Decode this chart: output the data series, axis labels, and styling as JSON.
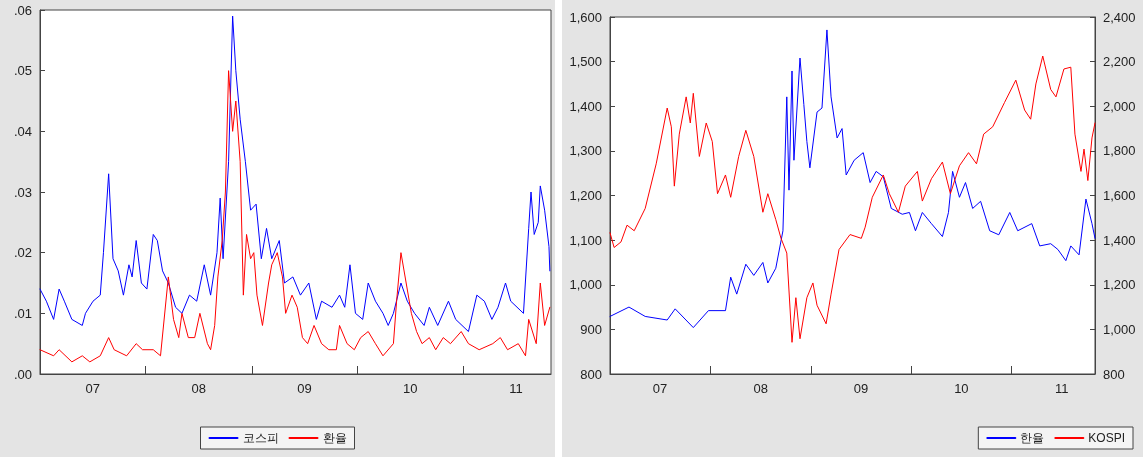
{
  "chart_data": [
    {
      "type": "line",
      "xlim": [
        "2007-01-01",
        "2011-10-31"
      ],
      "xticks": [
        {
          "value": "2008-01-01",
          "label": null
        },
        {
          "value": "2009-01-01",
          "label": null
        },
        {
          "value": "2010-01-01",
          "label": null
        },
        {
          "value": "2011-01-01",
          "label": null
        },
        {
          "value": "2007-07-02",
          "label": "07"
        },
        {
          "value": "2008-07-02",
          "label": "08"
        },
        {
          "value": "2009-07-02",
          "label": "09"
        },
        {
          "value": "2010-07-02",
          "label": "10"
        },
        {
          "value": "2011-07-02",
          "label": "11"
        }
      ],
      "ylim": [
        0,
        0.06
      ],
      "yticks": [
        {
          "value": 0,
          "label": ".00"
        },
        {
          "value": 0.01,
          "label": ".01"
        },
        {
          "value": 0.02,
          "label": ".02"
        },
        {
          "value": 0.03,
          "label": ".03"
        },
        {
          "value": 0.04,
          "label": ".04"
        },
        {
          "value": 0.05,
          "label": ".05"
        },
        {
          "value": 0.06,
          "label": ".06"
        }
      ],
      "grid": false,
      "legend": "bottom",
      "marker": "none",
      "line_style": "solid",
      "series": [
        {
          "name": "코스피",
          "color": "#0000ff",
          "x": [
            "2007-01-01",
            "2007-01-23",
            "2007-02-17",
            "2007-03-08",
            "2007-03-26",
            "2007-04-21",
            "2007-05-27",
            "2007-06-07",
            "2007-07-03",
            "2007-07-28",
            "2007-08-08",
            "2007-08-26",
            "2007-09-10",
            "2007-09-28",
            "2007-10-16",
            "2007-11-04",
            "2007-11-15",
            "2007-11-29",
            "2007-12-17",
            "2008-01-05",
            "2008-01-27",
            "2008-02-10",
            "2008-02-28",
            "2008-03-19",
            "2008-04-13",
            "2008-05-05",
            "2008-05-31",
            "2008-06-25",
            "2008-07-21",
            "2008-08-12",
            "2008-09-03",
            "2008-09-14",
            "2008-09-24",
            "2008-10-13",
            "2008-10-27",
            "2008-11-07",
            "2008-11-22",
            "2008-12-10",
            "2008-12-28",
            "2009-01-16",
            "2009-02-03",
            "2009-02-21",
            "2009-03-11",
            "2009-04-06",
            "2009-04-24",
            "2009-05-23",
            "2009-06-18",
            "2009-07-17",
            "2009-08-12",
            "2009-08-30",
            "2009-10-05",
            "2009-10-31",
            "2009-11-18",
            "2009-12-06",
            "2009-12-25",
            "2010-01-19",
            "2010-02-07",
            "2010-03-04",
            "2010-03-30",
            "2010-04-17",
            "2010-05-05",
            "2010-05-31",
            "2010-06-22",
            "2010-07-17",
            "2010-08-19",
            "2010-09-06",
            "2010-10-05",
            "2010-11-11",
            "2010-12-06",
            "2011-01-19",
            "2011-02-17",
            "2011-03-15",
            "2011-04-10",
            "2011-05-01",
            "2011-05-27",
            "2011-06-14",
            "2011-07-28",
            "2011-08-15",
            "2011-08-23",
            "2011-09-03",
            "2011-09-17",
            "2011-09-24",
            "2011-10-09",
            "2011-10-24",
            "2011-10-27"
          ],
          "values": [
            0.014,
            0.012,
            0.009,
            0.014,
            0.012,
            0.009,
            0.008,
            0.01,
            0.012,
            0.013,
            0.02,
            0.033,
            0.019,
            0.017,
            0.013,
            0.018,
            0.016,
            0.022,
            0.015,
            0.014,
            0.023,
            0.022,
            0.017,
            0.015,
            0.011,
            0.01,
            0.013,
            0.012,
            0.018,
            0.013,
            0.02,
            0.029,
            0.019,
            0.035,
            0.059,
            0.05,
            0.042,
            0.035,
            0.027,
            0.028,
            0.019,
            0.024,
            0.019,
            0.022,
            0.015,
            0.016,
            0.013,
            0.015,
            0.009,
            0.012,
            0.011,
            0.013,
            0.011,
            0.018,
            0.01,
            0.009,
            0.015,
            0.012,
            0.01,
            0.008,
            0.01,
            0.015,
            0.012,
            0.01,
            0.008,
            0.011,
            0.008,
            0.012,
            0.009,
            0.007,
            0.013,
            0.012,
            0.009,
            0.011,
            0.015,
            0.012,
            0.01,
            0.024,
            0.03,
            0.023,
            0.025,
            0.031,
            0.027,
            0.021,
            0.017
          ]
        },
        {
          "name": "환율",
          "color": "#ff0000",
          "x": [
            "2007-01-01",
            "2007-02-17",
            "2007-03-08",
            "2007-04-21",
            "2007-05-27",
            "2007-06-22",
            "2007-07-28",
            "2007-08-26",
            "2007-09-14",
            "2007-10-27",
            "2007-11-29",
            "2007-12-21",
            "2008-01-27",
            "2008-02-21",
            "2008-03-19",
            "2008-04-06",
            "2008-04-24",
            "2008-05-05",
            "2008-05-27",
            "2008-06-18",
            "2008-07-06",
            "2008-08-01",
            "2008-08-12",
            "2008-08-26",
            "2008-09-06",
            "2008-09-21",
            "2008-10-02",
            "2008-10-13",
            "2008-10-27",
            "2008-11-07",
            "2008-11-22",
            "2008-12-03",
            "2008-12-14",
            "2008-12-28",
            "2009-01-08",
            "2009-01-19",
            "2009-02-07",
            "2009-02-28",
            "2009-03-11",
            "2009-03-30",
            "2009-04-17",
            "2009-04-28",
            "2009-05-20",
            "2009-06-07",
            "2009-06-25",
            "2009-07-13",
            "2009-08-04",
            "2009-08-30",
            "2009-09-24",
            "2009-10-20",
            "2009-10-31",
            "2009-11-26",
            "2009-12-21",
            "2010-01-12",
            "2010-02-07",
            "2010-03-04",
            "2010-03-30",
            "2010-05-05",
            "2010-05-16",
            "2010-05-31",
            "2010-06-18",
            "2010-07-06",
            "2010-07-24",
            "2010-08-12",
            "2010-09-06",
            "2010-09-28",
            "2010-10-24",
            "2010-11-18",
            "2010-12-25",
            "2011-01-19",
            "2011-02-25",
            "2011-04-13",
            "2011-05-09",
            "2011-06-03",
            "2011-07-10",
            "2011-08-04",
            "2011-08-15",
            "2011-09-10",
            "2011-09-24",
            "2011-10-09",
            "2011-10-27"
          ],
          "values": [
            0.004,
            0.003,
            0.004,
            0.002,
            0.003,
            0.002,
            0.003,
            0.006,
            0.004,
            0.003,
            0.005,
            0.004,
            0.004,
            0.003,
            0.016,
            0.009,
            0.006,
            0.01,
            0.006,
            0.006,
            0.01,
            0.005,
            0.004,
            0.008,
            0.016,
            0.022,
            0.03,
            0.05,
            0.04,
            0.045,
            0.035,
            0.013,
            0.023,
            0.019,
            0.02,
            0.013,
            0.008,
            0.015,
            0.018,
            0.02,
            0.016,
            0.01,
            0.013,
            0.011,
            0.006,
            0.005,
            0.008,
            0.005,
            0.004,
            0.004,
            0.008,
            0.005,
            0.004,
            0.006,
            0.007,
            0.005,
            0.003,
            0.005,
            0.012,
            0.02,
            0.015,
            0.01,
            0.007,
            0.005,
            0.006,
            0.004,
            0.006,
            0.005,
            0.007,
            0.005,
            0.004,
            0.005,
            0.006,
            0.004,
            0.005,
            0.003,
            0.009,
            0.005,
            0.015,
            0.008,
            0.011
          ]
        }
      ]
    },
    {
      "type": "line",
      "xlim": [
        "2007-01-01",
        "2011-10-31"
      ],
      "xticks": [
        {
          "value": "2008-01-01",
          "label": null
        },
        {
          "value": "2009-01-01",
          "label": null
        },
        {
          "value": "2010-01-01",
          "label": null
        },
        {
          "value": "2011-01-01",
          "label": null
        },
        {
          "value": "2007-07-02",
          "label": "07"
        },
        {
          "value": "2008-07-02",
          "label": "08"
        },
        {
          "value": "2009-07-02",
          "label": "09"
        },
        {
          "value": "2010-07-02",
          "label": "10"
        },
        {
          "value": "2011-07-02",
          "label": "11"
        }
      ],
      "ylim": [
        800,
        1600
      ],
      "yticks": [
        800,
        900,
        {
          "value": 1000,
          "label": "1,000"
        },
        {
          "value": 1100,
          "label": "1,100"
        },
        {
          "value": 1200,
          "label": "1,200"
        },
        {
          "value": 1300,
          "label": "1,300"
        },
        {
          "value": 1400,
          "label": "1,400"
        },
        {
          "value": 1500,
          "label": "1,500"
        },
        {
          "value": 1600,
          "label": "1,600"
        }
      ],
      "y2lim": [
        800,
        2400
      ],
      "y2ticks": [
        800,
        {
          "value": 1000,
          "label": "1,000"
        },
        {
          "value": 1200,
          "label": "1,200"
        },
        {
          "value": 1400,
          "label": "1,400"
        },
        {
          "value": 1600,
          "label": "1,600"
        },
        {
          "value": 1800,
          "label": "1,800"
        },
        {
          "value": 2000,
          "label": "2,000"
        },
        {
          "value": 2200,
          "label": "2,200"
        },
        {
          "value": 2400,
          "label": "2,400"
        }
      ],
      "grid": false,
      "legend": "bottom right",
      "marker": "none",
      "line_style": "solid",
      "series": [
        {
          "name": "한율",
          "color": "#0000ff",
          "x": [
            "2007-01-01",
            "2007-03-11",
            "2007-05-09",
            "2007-07-28",
            "2007-08-26",
            "2007-10-31",
            "2007-12-25",
            "2008-02-25",
            "2008-03-15",
            "2008-04-06",
            "2008-05-09",
            "2008-06-07",
            "2008-07-10",
            "2008-07-28",
            "2008-08-26",
            "2008-09-21",
            "2008-10-05",
            "2008-10-13",
            "2008-10-24",
            "2008-10-31",
            "2008-11-22",
            "2008-12-06",
            "2008-12-17",
            "2008-12-28",
            "2009-01-23",
            "2009-02-10",
            "2009-02-28",
            "2009-03-15",
            "2009-04-06",
            "2009-04-24",
            "2009-05-09",
            "2009-06-07",
            "2009-07-10",
            "2009-08-04",
            "2009-08-26",
            "2009-09-21",
            "2009-10-20",
            "2009-11-29",
            "2009-12-25",
            "2010-01-16",
            "2010-02-10",
            "2010-03-15",
            "2010-04-24",
            "2010-05-16",
            "2010-05-31",
            "2010-06-25",
            "2010-07-17",
            "2010-08-12",
            "2010-09-10",
            "2010-10-13",
            "2010-11-15",
            "2010-12-25",
            "2011-01-23",
            "2011-03-15",
            "2011-04-13",
            "2011-05-23",
            "2011-06-18",
            "2011-07-17",
            "2011-08-04",
            "2011-09-03",
            "2011-09-28",
            "2011-10-20",
            "2011-10-31"
          ],
          "values": [
            929,
            950,
            929,
            921,
            946,
            904,
            942,
            942,
            1017,
            979,
            1046,
            1021,
            1050,
            1004,
            1037,
            1121,
            1421,
            1212,
            1479,
            1279,
            1508,
            1404,
            1321,
            1262,
            1387,
            1396,
            1571,
            1421,
            1329,
            1350,
            1246,
            1279,
            1296,
            1229,
            1254,
            1242,
            1171,
            1158,
            1162,
            1121,
            1162,
            1137,
            1108,
            1162,
            1254,
            1196,
            1229,
            1171,
            1187,
            1121,
            1112,
            1162,
            1121,
            1137,
            1087,
            1092,
            1079,
            1054,
            1087,
            1067,
            1192,
            1137,
            1104
          ]
        },
        {
          "name": "KOSPI",
          "color": "#ff0000",
          "axis": "y2",
          "x": [
            "2007-01-01",
            "2007-01-16",
            "2007-02-10",
            "2007-03-04",
            "2007-03-30",
            "2007-05-09",
            "2007-06-18",
            "2007-07-28",
            "2007-08-12",
            "2007-08-23",
            "2007-09-10",
            "2007-10-05",
            "2007-10-20",
            "2007-10-31",
            "2007-11-22",
            "2007-12-17",
            "2008-01-08",
            "2008-01-27",
            "2008-02-25",
            "2008-03-15",
            "2008-04-13",
            "2008-05-09",
            "2008-06-07",
            "2008-07-10",
            "2008-07-28",
            "2008-08-26",
            "2008-09-14",
            "2008-10-05",
            "2008-10-24",
            "2008-11-07",
            "2008-11-22",
            "2008-12-17",
            "2009-01-08",
            "2009-01-23",
            "2009-02-25",
            "2009-03-15",
            "2009-04-13",
            "2009-05-23",
            "2009-07-03",
            "2009-07-17",
            "2009-08-12",
            "2009-09-21",
            "2009-10-13",
            "2009-11-15",
            "2009-12-10",
            "2010-01-23",
            "2010-02-10",
            "2010-03-15",
            "2010-04-24",
            "2010-05-23",
            "2010-06-25",
            "2010-07-28",
            "2010-08-26",
            "2010-09-21",
            "2010-10-24",
            "2010-12-06",
            "2011-01-16",
            "2011-02-17",
            "2011-03-11",
            "2011-03-30",
            "2011-04-24",
            "2011-05-23",
            "2011-06-11",
            "2011-07-10",
            "2011-08-04",
            "2011-08-19",
            "2011-09-10",
            "2011-09-21",
            "2011-10-05",
            "2011-10-20",
            "2011-10-31"
          ],
          "values": [
            1433,
            1367,
            1392,
            1467,
            1442,
            1542,
            1742,
            1992,
            1908,
            1642,
            1875,
            2042,
            1925,
            2058,
            1775,
            1925,
            1842,
            1608,
            1692,
            1592,
            1775,
            1892,
            1775,
            1525,
            1608,
            1492,
            1408,
            1342,
            942,
            1142,
            958,
            1142,
            1208,
            1108,
            1025,
            1158,
            1358,
            1425,
            1408,
            1458,
            1592,
            1692,
            1608,
            1525,
            1642,
            1708,
            1575,
            1675,
            1750,
            1608,
            1733,
            1792,
            1742,
            1875,
            1908,
            2017,
            2117,
            1983,
            1942,
            2100,
            2225,
            2075,
            2042,
            2167,
            2175,
            1875,
            1708,
            1808,
            1667,
            1858,
            1925
          ]
        }
      ]
    }
  ]
}
